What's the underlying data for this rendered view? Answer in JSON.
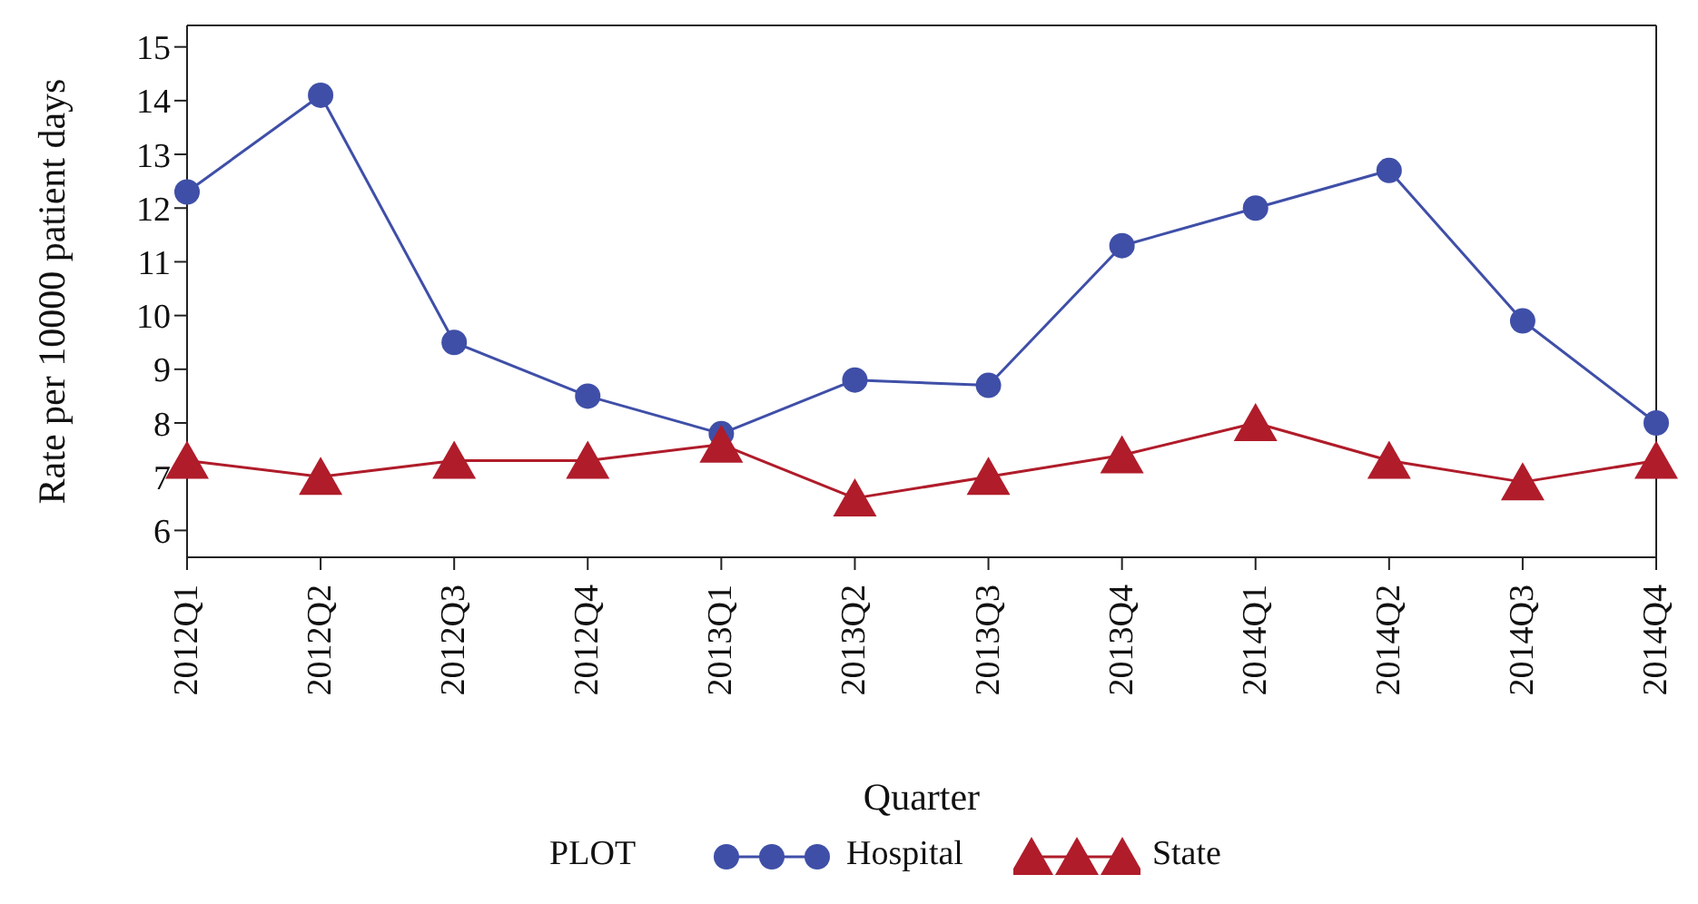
{
  "chart_data": {
    "type": "line",
    "xlabel": "Quarter",
    "ylabel": "Rate per 10000 patient days",
    "legend_title": "PLOT",
    "categories": [
      "2012Q1",
      "2012Q2",
      "2012Q3",
      "2012Q4",
      "2013Q1",
      "2013Q2",
      "2013Q3",
      "2013Q4",
      "2014Q1",
      "2014Q2",
      "2014Q3",
      "2014Q4"
    ],
    "series": [
      {
        "name": "Hospital",
        "color": "#3f4fa8",
        "marker": "circle",
        "values": [
          12.3,
          14.1,
          9.5,
          8.5,
          7.8,
          8.8,
          8.7,
          11.3,
          12.0,
          12.7,
          9.9,
          8.0
        ]
      },
      {
        "name": "State",
        "color": "#b01c2a",
        "marker": "triangle",
        "values": [
          7.3,
          7.0,
          7.3,
          7.3,
          7.6,
          6.6,
          7.0,
          7.4,
          8.0,
          7.3,
          6.9,
          7.3
        ]
      }
    ],
    "ylim": [
      5.5,
      15.4
    ],
    "yticks": [
      6,
      7,
      8,
      9,
      10,
      11,
      12,
      13,
      14,
      15
    ],
    "grid": false,
    "legend": "bottom"
  }
}
